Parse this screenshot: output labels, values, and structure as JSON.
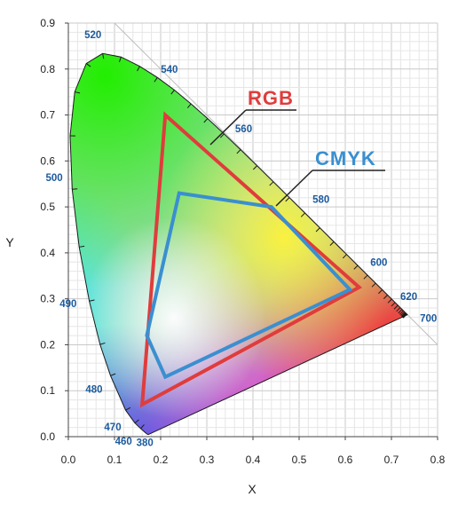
{
  "chart_data": {
    "type": "scatter",
    "xlabel": "X",
    "ylabel": "Y",
    "xlim": [
      0,
      0.8
    ],
    "ylim": [
      0,
      0.9
    ],
    "x_ticks": [
      "0.0",
      "0.1",
      "0.2",
      "0.3",
      "0.4",
      "0.5",
      "0.6",
      "0.7",
      "0.8"
    ],
    "y_ticks": [
      "0.0",
      "0.1",
      "0.2",
      "0.3",
      "0.4",
      "0.5",
      "0.6",
      "0.7",
      "0.8",
      "0.9"
    ],
    "grid": true,
    "spectral_locus": [
      [
        0.1741,
        0.005
      ],
      [
        0.1736,
        0.0049
      ],
      [
        0.173,
        0.0048
      ],
      [
        0.1721,
        0.0048
      ],
      [
        0.1703,
        0.0058
      ],
      [
        0.1666,
        0.0089
      ],
      [
        0.1566,
        0.0177
      ],
      [
        0.144,
        0.0297
      ],
      [
        0.1241,
        0.0578
      ],
      [
        0.0913,
        0.1327
      ],
      [
        0.0687,
        0.2007
      ],
      [
        0.0454,
        0.295
      ],
      [
        0.0235,
        0.4127
      ],
      [
        0.0082,
        0.5384
      ],
      [
        0.0039,
        0.6548
      ],
      [
        0.0139,
        0.7502
      ],
      [
        0.0389,
        0.812
      ],
      [
        0.0743,
        0.8338
      ],
      [
        0.1142,
        0.8262
      ],
      [
        0.1547,
        0.8059
      ],
      [
        0.1929,
        0.7816
      ],
      [
        0.2296,
        0.7543
      ],
      [
        0.2658,
        0.7243
      ],
      [
        0.3016,
        0.6923
      ],
      [
        0.3373,
        0.6589
      ],
      [
        0.3731,
        0.6245
      ],
      [
        0.4087,
        0.5896
      ],
      [
        0.4441,
        0.5547
      ],
      [
        0.4788,
        0.5202
      ],
      [
        0.5125,
        0.4866
      ],
      [
        0.5448,
        0.4544
      ],
      [
        0.5752,
        0.4242
      ],
      [
        0.6029,
        0.3965
      ],
      [
        0.627,
        0.3725
      ],
      [
        0.6482,
        0.3514
      ],
      [
        0.6658,
        0.334
      ],
      [
        0.6801,
        0.3197
      ],
      [
        0.6915,
        0.3083
      ],
      [
        0.7006,
        0.2993
      ],
      [
        0.7079,
        0.292
      ],
      [
        0.714,
        0.2859
      ],
      [
        0.719,
        0.2809
      ],
      [
        0.723,
        0.277
      ],
      [
        0.726,
        0.274
      ],
      [
        0.7283,
        0.2717
      ],
      [
        0.73,
        0.27
      ],
      [
        0.7311,
        0.2689
      ],
      [
        0.732,
        0.268
      ],
      [
        0.7327,
        0.2673
      ],
      [
        0.7334,
        0.2666
      ],
      [
        0.734,
        0.266
      ],
      [
        0.7344,
        0.2656
      ],
      [
        0.7346,
        0.2654
      ],
      [
        0.7347,
        0.2653
      ]
    ],
    "wavelength_labels": [
      {
        "text": "520",
        "x": 0.0743,
        "y": 0.8338
      },
      {
        "text": "540",
        "x": 0.2296,
        "y": 0.7543
      },
      {
        "text": "560",
        "x": 0.3731,
        "y": 0.6245
      },
      {
        "text": "580",
        "x": 0.5125,
        "y": 0.4866
      },
      {
        "text": "600",
        "x": 0.627,
        "y": 0.3725
      },
      {
        "text": "620",
        "x": 0.6915,
        "y": 0.3083
      },
      {
        "text": "700",
        "x": 0.7347,
        "y": 0.2653
      },
      {
        "text": "500",
        "x": 0.0082,
        "y": 0.5384
      },
      {
        "text": "490",
        "x": 0.0454,
        "y": 0.295
      },
      {
        "text": "480",
        "x": 0.0913,
        "y": 0.1327
      },
      {
        "text": "470",
        "x": 0.1241,
        "y": 0.0578
      },
      {
        "text": "460",
        "x": 0.144,
        "y": 0.0297
      },
      {
        "text": "380",
        "x": 0.1741,
        "y": 0.005
      }
    ],
    "series": [
      {
        "name": "RGB",
        "color": "#e03c3c",
        "points": [
          [
            0.21,
            0.7
          ],
          [
            0.63,
            0.325
          ],
          [
            0.16,
            0.07
          ]
        ]
      },
      {
        "name": "CMYK",
        "color": "#3a8fd0",
        "points": [
          [
            0.24,
            0.53
          ],
          [
            0.44,
            0.5
          ],
          [
            0.61,
            0.32
          ],
          [
            0.21,
            0.13
          ],
          [
            0.17,
            0.22
          ]
        ]
      }
    ],
    "annotations": [
      {
        "text": "RGB",
        "series": "RGB",
        "color": "#e03c3c"
      },
      {
        "text": "CMYK",
        "series": "CMYK",
        "color": "#3a8fd0"
      }
    ]
  }
}
